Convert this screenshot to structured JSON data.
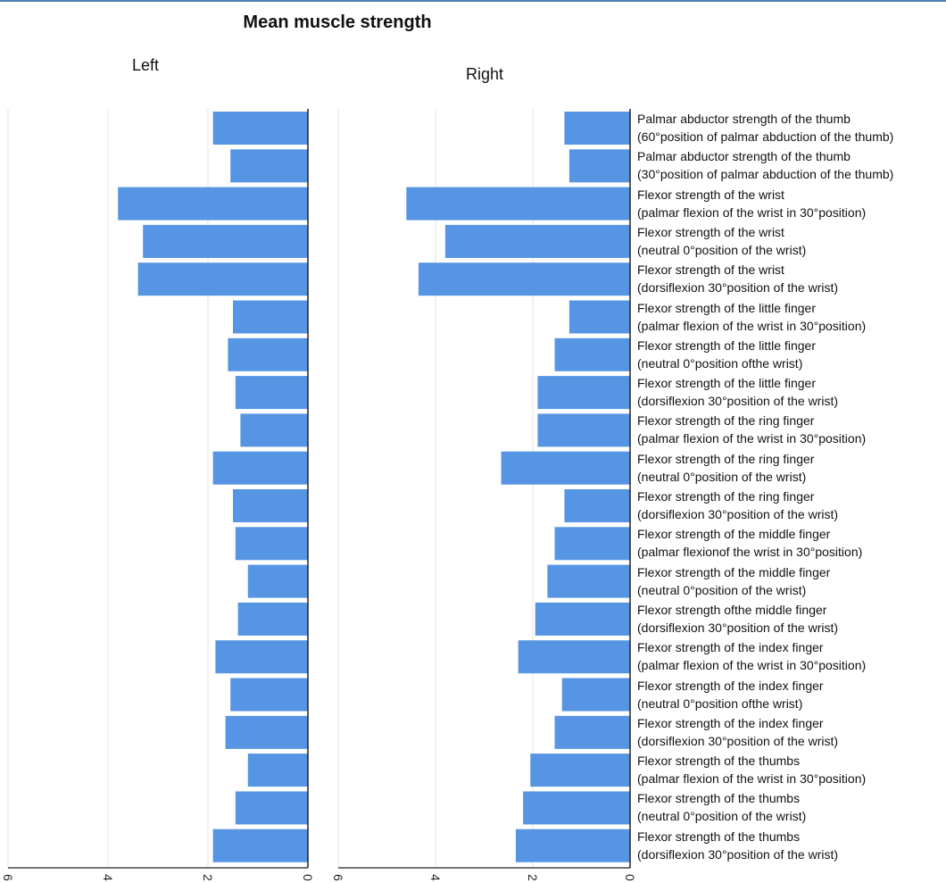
{
  "chart_data": {
    "type": "bar",
    "title": "Mean muscle strength",
    "orientation": "horizontal",
    "x_direction": "reversed",
    "panels": [
      {
        "name": "Left",
        "xlim": [
          0,
          6
        ],
        "ticks": [
          0,
          2,
          4,
          6
        ]
      },
      {
        "name": "Right",
        "xlim": [
          0,
          6
        ],
        "ticks": [
          0,
          2,
          4,
          6
        ]
      }
    ],
    "grid": true,
    "bar_color": "#5595e3",
    "categories": [
      [
        "Palmar abductor strength of the thumb",
        "(60°position of palmar abduction of the thumb)"
      ],
      [
        "Palmar abductor strength of the thumb",
        "(30°position of palmar abduction of the thumb)"
      ],
      [
        "Flexor strength of the wrist",
        "(palmar flexion of the wrist in 30°position)"
      ],
      [
        "Flexor strength of the wrist",
        "(neutral 0°position of the wrist)"
      ],
      [
        "Flexor strength of the wrist",
        "(dorsiflexion 30°position of the wrist)"
      ],
      [
        "Flexor strength of the little finger",
        "(palmar flexion of the wrist in 30°position)"
      ],
      [
        "Flexor strength of the little finger",
        "(neutral 0°position ofthe wrist)"
      ],
      [
        "Flexor strength of the little finger",
        "(dorsiflexion 30°position of the wrist)"
      ],
      [
        "Flexor strength of the ring finger",
        "(palmar flexion of the wrist in 30°position)"
      ],
      [
        "Flexor strength of the ring finger",
        "(neutral 0°position of the wrist)"
      ],
      [
        "Flexor strength of the ring finger",
        "(dorsiflexion 30°position of the wrist)"
      ],
      [
        "Flexor strength of the middle finger",
        "(palmar flexionof the wrist in 30°position)"
      ],
      [
        "Flexor strength of the middle finger",
        "(neutral 0°position of the wrist)"
      ],
      [
        "Flexor strength ofthe middle finger",
        "(dorsiflexion 30°position of the wrist)"
      ],
      [
        "Flexor strength of the index finger",
        "(palmar flexion of the wrist in 30°position)"
      ],
      [
        "Flexor strength of the index finger",
        "(neutral 0°position ofthe wrist)"
      ],
      [
        "Flexor strength of the index finger",
        "(dorsiflexion 30°position of the wrist)"
      ],
      [
        "Flexor strength of the thumbs",
        "(palmar flexion of the wrist in 30°position)"
      ],
      [
        "Flexor strength of the thumbs",
        "(neutral 0°position of the wrist)"
      ],
      [
        "Flexor strength of the thumbs",
        "(dorsiflexion 30°position of the wrist)"
      ]
    ],
    "series": [
      {
        "name": "Left",
        "values": [
          1.9,
          1.55,
          3.8,
          3.3,
          3.4,
          1.5,
          1.6,
          1.45,
          1.35,
          1.9,
          1.5,
          1.45,
          1.2,
          1.4,
          1.85,
          1.55,
          1.65,
          1.2,
          1.45,
          1.9
        ]
      },
      {
        "name": "Right",
        "values": [
          1.35,
          1.25,
          4.6,
          3.8,
          4.35,
          1.25,
          1.55,
          1.9,
          1.9,
          2.65,
          1.35,
          1.55,
          1.7,
          1.95,
          2.3,
          1.4,
          1.55,
          2.05,
          2.2,
          2.35
        ]
      }
    ]
  }
}
